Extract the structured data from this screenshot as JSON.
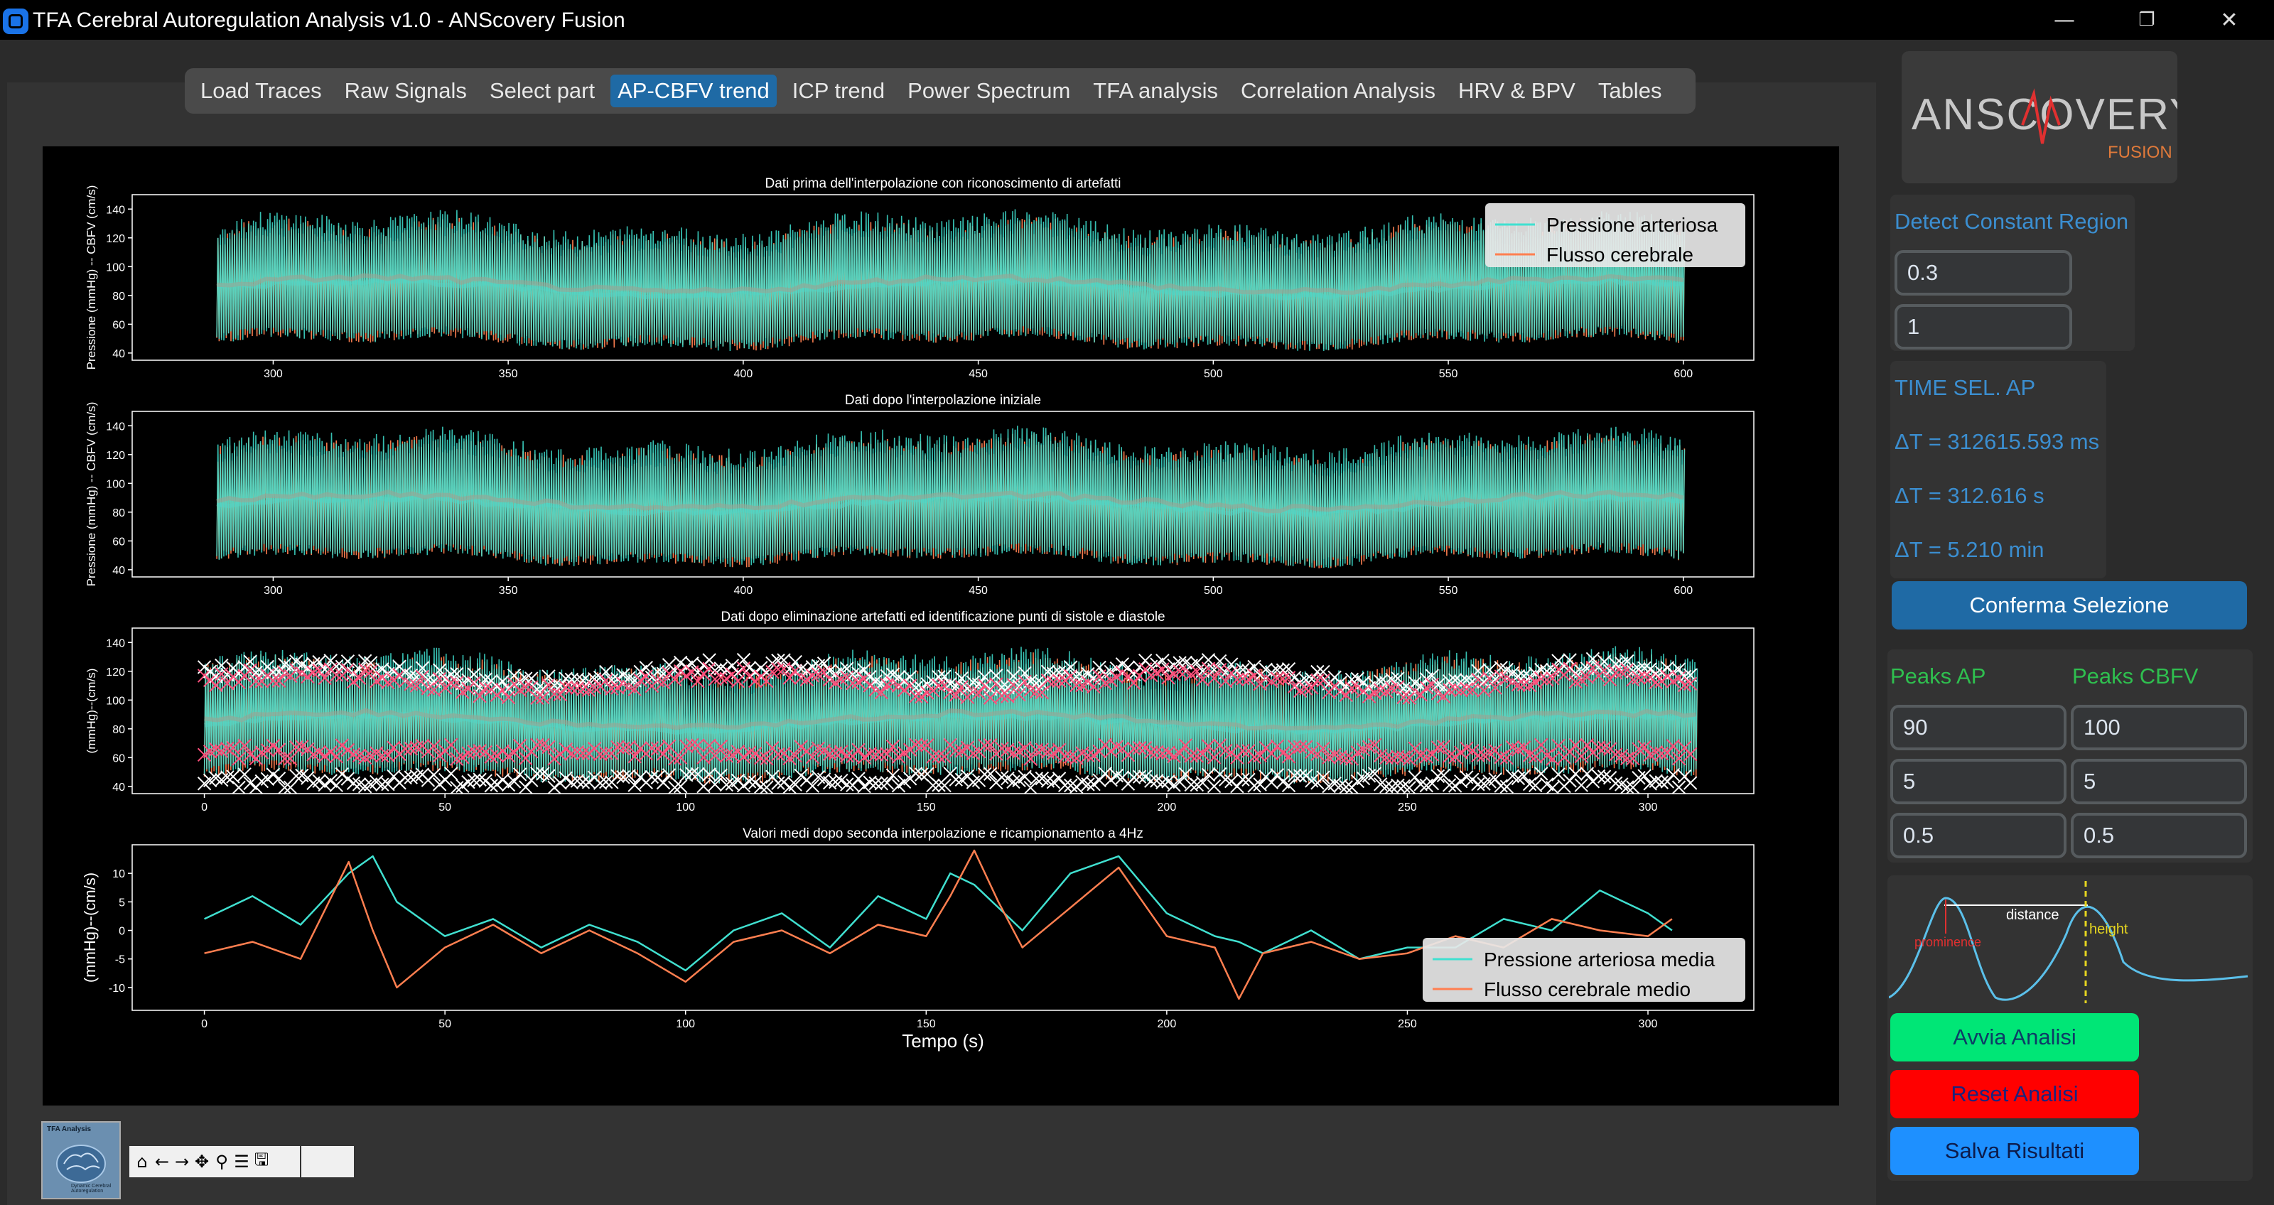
{
  "window": {
    "title": "TFA Cerebral Autoregulation Analysis v1.0 - ANScovery Fusion",
    "minimize": "—",
    "restore": "❐",
    "close": "✕"
  },
  "tabs": [
    {
      "label": "Load Traces"
    },
    {
      "label": "Raw Signals"
    },
    {
      "label": "Select part"
    },
    {
      "label": "AP-CBFV trend",
      "active": true
    },
    {
      "label": "ICP trend"
    },
    {
      "label": "Power Spectrum"
    },
    {
      "label": "TFA analysis"
    },
    {
      "label": "Correlation Analysis"
    },
    {
      "label": "HRV & BPV"
    },
    {
      "label": "Tables"
    }
  ],
  "chart_data": [
    {
      "type": "line",
      "title": "Dati prima dell'interpolazione con riconoscimento di artefatti",
      "ylabel": "Pressione (mmHg) -- CBFV (cm/s)",
      "xlim": [
        270,
        615
      ],
      "ylim": [
        35,
        150
      ],
      "xticks": [
        300,
        350,
        400,
        450,
        500,
        550,
        600
      ],
      "yticks": [
        40,
        60,
        80,
        100,
        120,
        140
      ],
      "legend": "top-right",
      "series": [
        {
          "name": "Pressione arteriosa",
          "color": "#40e0d0",
          "x_range": [
            288,
            600
          ],
          "upper": 125,
          "lower": 50
        },
        {
          "name": "Flusso cerebrale",
          "color": "#ff7f50",
          "x_range": [
            288,
            600
          ],
          "upper": 120,
          "lower": 50
        }
      ]
    },
    {
      "type": "line",
      "title": "Dati dopo l'interpolazione iniziale",
      "ylabel": "Pressione (mmHg) -- CBFV (cm/s)",
      "xlim": [
        270,
        615
      ],
      "ylim": [
        35,
        150
      ],
      "xticks": [
        300,
        350,
        400,
        450,
        500,
        550,
        600
      ],
      "yticks": [
        40,
        60,
        80,
        100,
        120,
        140
      ],
      "series": [
        {
          "name": "Pressione arteriosa",
          "color": "#40e0d0",
          "x_range": [
            288,
            600
          ],
          "upper": 125,
          "lower": 50
        },
        {
          "name": "Flusso cerebrale",
          "color": "#ff7f50",
          "x_range": [
            288,
            600
          ],
          "upper": 120,
          "lower": 50
        }
      ]
    },
    {
      "type": "scatter",
      "title": "Dati dopo eliminazione artefatti ed identificazione punti di sistole e diastole",
      "ylabel": "(mmHg)--(cm/s)",
      "xlim": [
        -15,
        322
      ],
      "ylim": [
        35,
        150
      ],
      "xticks": [
        0,
        50,
        100,
        150,
        200,
        250,
        300
      ],
      "yticks": [
        40,
        60,
        80,
        100,
        120,
        140
      ],
      "series": [
        {
          "name": "Pressione arteriosa",
          "color": "#40e0d0",
          "x_range": [
            0,
            310
          ],
          "upper": 122,
          "lower": 50
        },
        {
          "name": "Flusso cerebrale",
          "color": "#ff7f50",
          "x_range": [
            0,
            310
          ],
          "upper": 118,
          "lower": 50
        }
      ]
    },
    {
      "type": "line",
      "title": "Valori medi dopo seconda interpolazione e ricampionamento a 4Hz",
      "ylabel": "(mmHg)--(cm/s)",
      "xlabel": "Tempo (s)",
      "xlim": [
        -15,
        322
      ],
      "ylim": [
        -14,
        15
      ],
      "xticks": [
        0,
        50,
        100,
        150,
        200,
        250,
        300
      ],
      "yticks": [
        -10,
        -5,
        0,
        5,
        10
      ],
      "legend": "bottom-right",
      "series": [
        {
          "name": "Pressione arteriosa media",
          "color": "#40e0d0",
          "x": [
            0,
            10,
            20,
            30,
            35,
            40,
            50,
            60,
            70,
            80,
            90,
            100,
            110,
            120,
            130,
            140,
            150,
            155,
            160,
            165,
            170,
            180,
            190,
            200,
            210,
            215,
            220,
            230,
            240,
            250,
            260,
            270,
            280,
            290,
            300,
            305
          ],
          "y": [
            2,
            6,
            1,
            10,
            13,
            5,
            -1,
            2,
            -3,
            1,
            -2,
            -7,
            0,
            3,
            -3,
            6,
            2,
            10,
            8,
            4,
            0,
            10,
            13,
            3,
            -1,
            -2,
            -4,
            0,
            -5,
            -3,
            -3,
            2,
            0,
            7,
            3,
            0
          ]
        },
        {
          "name": "Flusso cerebrale medio",
          "color": "#ff7f50",
          "x": [
            0,
            10,
            20,
            30,
            35,
            40,
            50,
            60,
            70,
            80,
            90,
            100,
            110,
            120,
            130,
            140,
            150,
            155,
            160,
            165,
            170,
            180,
            190,
            200,
            210,
            215,
            220,
            230,
            240,
            250,
            260,
            270,
            280,
            290,
            300,
            305
          ],
          "y": [
            -4,
            -2,
            -5,
            12,
            0,
            -10,
            -3,
            1,
            -4,
            0,
            -4,
            -9,
            -2,
            0,
            -4,
            1,
            -1,
            6,
            14,
            5,
            -3,
            4,
            11,
            -1,
            -3,
            -12,
            -4,
            -2,
            -5,
            -4,
            -1,
            -3,
            2,
            0,
            -1,
            2
          ]
        }
      ]
    }
  ],
  "sidebar": {
    "logo_text": "ANSCOVERY",
    "logo_sub": "FUSION",
    "detect_label": "Detect Constant Region",
    "detect_val1": "0.3",
    "detect_val2": "1",
    "time_sel_label": "TIME SEL. AP",
    "dt_ms": "ΔT = 312615.593 ms",
    "dt_s": "ΔT = 312.616 s",
    "dt_min": "ΔT = 5.210 min",
    "confirm_button": "Conferma Selezione",
    "peaks_ap_label": "Peaks AP",
    "peaks_cbfv_label": "Peaks CBFV",
    "peaks_ap": [
      "90",
      "5",
      "0.5"
    ],
    "peaks_cbfv": [
      "100",
      "5",
      "0.5"
    ],
    "diagram": {
      "distance": "distance",
      "height": "height",
      "prominence": "prominence"
    },
    "start_button": "Avvia Analisi",
    "reset_button": "Reset Analisi",
    "save_button": "Salva Risultati"
  },
  "thumbnail": {
    "title": "TFA Analysis",
    "subtitle": "Dynamic Cerebral Autoregulation"
  },
  "toolbar": {
    "icons": [
      "⌂",
      "←",
      "→",
      "✥",
      "⚲",
      "☰",
      "🖫"
    ]
  }
}
